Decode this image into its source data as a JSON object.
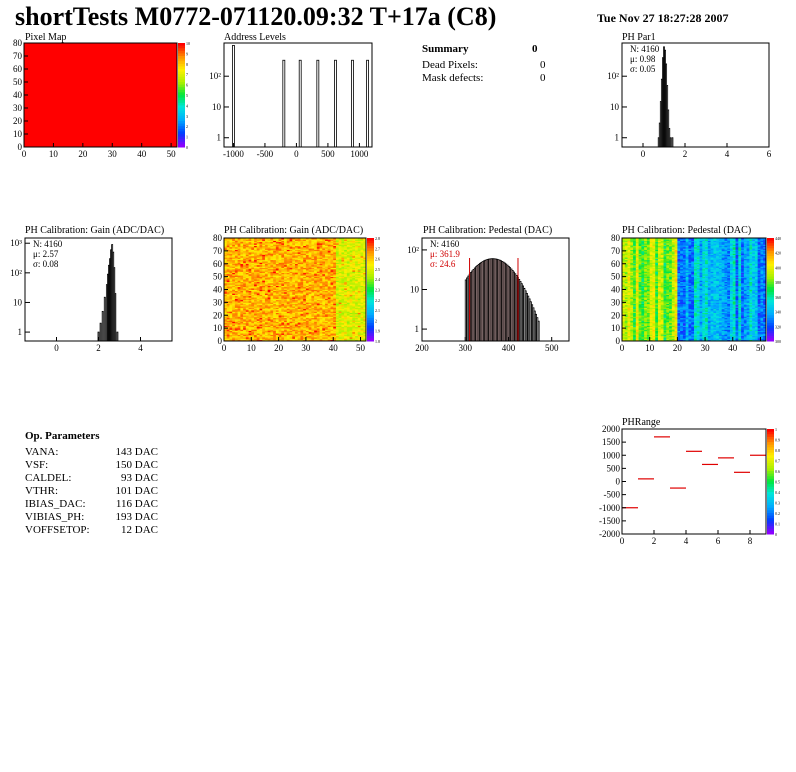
{
  "title": "shortTests M0772-071120.09:32 T+17a (C8)",
  "datetime": "Tue Nov 27 18:27:28 2007",
  "summary": {
    "heading": "Summary",
    "value": "0",
    "rows": [
      {
        "label": "Dead Pixels:",
        "value": "0"
      },
      {
        "label": "Mask defects:",
        "value": "0"
      }
    ]
  },
  "op_parameters": {
    "heading": "Op. Parameters",
    "rows": [
      {
        "name": "VANA:",
        "value": "143 DAC"
      },
      {
        "name": "VSF:",
        "value": "150 DAC"
      },
      {
        "name": "CALDEL:",
        "value": "93 DAC"
      },
      {
        "name": "VTHR:",
        "value": "101 DAC"
      },
      {
        "name": "IBIAS_DAC:",
        "value": "116 DAC"
      },
      {
        "name": "VIBIAS_PH:",
        "value": "193 DAC"
      },
      {
        "name": "VOFFSETOP:",
        "value": "12 DAC"
      }
    ]
  },
  "chart_data": [
    {
      "id": "pixel_map",
      "type": "heatmap",
      "title": "Pixel Map",
      "xlim": [
        0,
        52
      ],
      "ylim": [
        0,
        80
      ],
      "x_ticks": [
        "0",
        "10",
        "20",
        "30",
        "40",
        "50"
      ],
      "y_ticks": [
        "0",
        "10",
        "20",
        "30",
        "40",
        "50",
        "60",
        "70",
        "80"
      ],
      "fill_value": 10,
      "z_range": [
        0,
        10
      ],
      "z_ticks": [
        "10",
        "9",
        "8",
        "7",
        "6",
        "5",
        "4",
        "3",
        "2",
        "1",
        "0"
      ]
    },
    {
      "id": "address_levels",
      "type": "bar",
      "title": "Address Levels",
      "xlim": [
        -1150,
        1200
      ],
      "y_scale": "log",
      "ylim": [
        0.5,
        1200
      ],
      "x_ticks": [
        "-1000",
        "-500",
        "0",
        "500",
        "1000"
      ],
      "y_ticks": [
        "1",
        "10",
        "10²"
      ],
      "peaks": [
        {
          "x": -1000,
          "y": 1000
        },
        {
          "x": -200,
          "y": 330
        },
        {
          "x": 60,
          "y": 330
        },
        {
          "x": 340,
          "y": 330
        },
        {
          "x": 620,
          "y": 330
        },
        {
          "x": 890,
          "y": 330
        },
        {
          "x": 1130,
          "y": 330
        }
      ]
    },
    {
      "id": "ph_par1",
      "type": "bar",
      "title": "PH Par1",
      "stats": [
        "N: 4160",
        "μ: 0.98",
        "σ: 0.05"
      ],
      "xlim": [
        -1,
        6
      ],
      "y_scale": "log",
      "ylim": [
        0.5,
        1200
      ],
      "x_ticks": [
        "0",
        "2",
        "4",
        "6"
      ],
      "y_ticks": [
        "1",
        "10",
        "10²"
      ],
      "bins_x": [
        0.75,
        0.8,
        0.85,
        0.9,
        0.95,
        1.0,
        1.05,
        1.1,
        1.15,
        1.2,
        1.25,
        1.3,
        1.4
      ],
      "bins_y": [
        1,
        3,
        15,
        80,
        400,
        900,
        700,
        250,
        50,
        8,
        2,
        1,
        1
      ]
    },
    {
      "id": "gain_1d",
      "type": "bar",
      "title": "PH Calibration: Gain (ADC/DAC)",
      "stats": [
        "N: 4160",
        "μ: 2.57",
        "σ: 0.08"
      ],
      "xlim": [
        -1.5,
        5.5
      ],
      "y_scale": "log",
      "ylim": [
        0.5,
        1500
      ],
      "x_ticks": [
        "0",
        "2",
        "4"
      ],
      "y_ticks": [
        "1",
        "10",
        "10²",
        "10³"
      ],
      "bins_x": [
        2.0,
        2.1,
        2.2,
        2.3,
        2.4,
        2.45,
        2.5,
        2.55,
        2.6,
        2.65,
        2.7,
        2.75,
        2.8,
        2.9
      ],
      "bins_y": [
        1,
        2,
        5,
        15,
        40,
        90,
        180,
        300,
        600,
        900,
        500,
        150,
        20,
        1
      ]
    },
    {
      "id": "gain_map",
      "type": "heatmap",
      "title": "PH Calibration: Gain (ADC/DAC)",
      "xlim": [
        0,
        52
      ],
      "ylim": [
        0,
        80
      ],
      "x_ticks": [
        "0",
        "10",
        "20",
        "30",
        "40",
        "50"
      ],
      "y_ticks": [
        "0",
        "10",
        "20",
        "30",
        "40",
        "50",
        "60",
        "70",
        "80"
      ],
      "z_range": [
        1.0,
        2.9
      ],
      "mean": 2.57,
      "z_ticks": [
        "2.8",
        "2.7",
        "2.6",
        "2.5",
        "2.4",
        "2.3",
        "2.2",
        "2.1",
        "2",
        "1.9",
        "1.8"
      ]
    },
    {
      "id": "pedestal_1d",
      "type": "bar",
      "title": "PH Calibration: Pedestal (DAC)",
      "stats": [
        "N: 4160",
        "μ: 361.9",
        "σ: 24.6"
      ],
      "xlim": [
        200,
        540
      ],
      "y_scale": "log",
      "ylim": [
        0.5,
        200
      ],
      "x_ticks": [
        "200",
        "300",
        "400",
        "500"
      ],
      "y_ticks": [
        "1",
        "10",
        "10²"
      ],
      "mean": 361.9,
      "sigma": 24.6,
      "cut_low": 310,
      "cut_high": 422
    },
    {
      "id": "pedestal_map",
      "type": "heatmap",
      "title": "PH Calibration: Pedestal (DAC)",
      "xlim": [
        0,
        52
      ],
      "ylim": [
        0,
        80
      ],
      "x_ticks": [
        "0",
        "10",
        "20",
        "30",
        "40",
        "50"
      ],
      "y_ticks": [
        "0",
        "10",
        "20",
        "30",
        "40",
        "50",
        "60",
        "70",
        "80"
      ],
      "z_range": [
        300,
        440
      ],
      "z_ticks": [
        "440",
        "420",
        "400",
        "380",
        "360",
        "340",
        "320",
        "300"
      ]
    },
    {
      "id": "ph_range",
      "type": "scatter",
      "title": "PHRange",
      "xlim": [
        0,
        9
      ],
      "ylim": [
        -2000,
        2000
      ],
      "x_ticks": [
        "0",
        "2",
        "4",
        "6",
        "8"
      ],
      "y_ticks": [
        "2000",
        "1500",
        "1000",
        "500",
        "0",
        "-500",
        "-1000",
        "-1500",
        "-2000"
      ],
      "segments_x": [
        0,
        1,
        2,
        3,
        4,
        5,
        6,
        7,
        8
      ],
      "segments_y": [
        -1000,
        100,
        1700,
        -250,
        1150,
        650,
        900,
        350,
        1000
      ],
      "segment_color": "#e00000",
      "z_ticks": [
        "1",
        "0.9",
        "0.8",
        "0.7",
        "0.6",
        "0.5",
        "0.4",
        "0.3",
        "0.2",
        "0.1",
        "0"
      ]
    }
  ]
}
